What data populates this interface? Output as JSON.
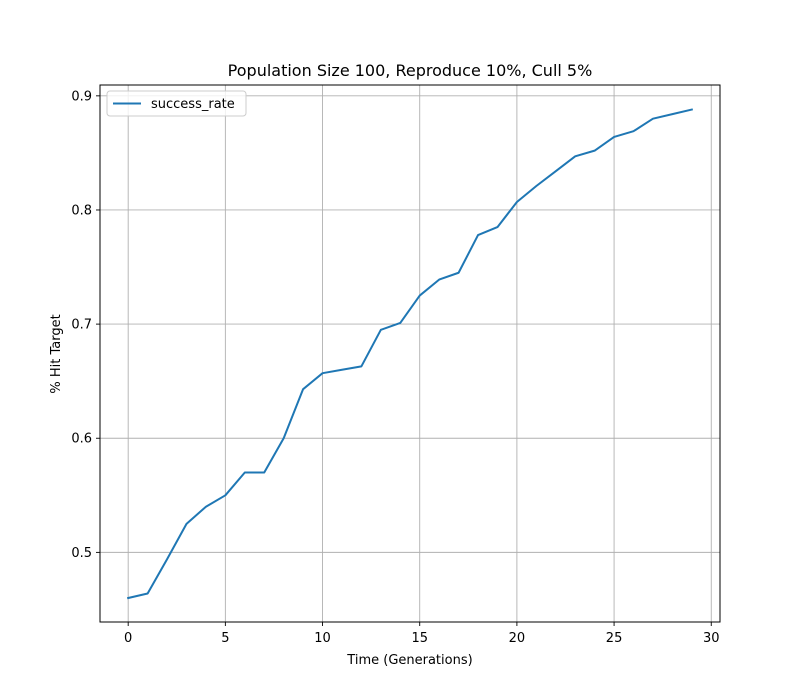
{
  "chart_data": {
    "type": "line",
    "title": "Population Size 100, Reproduce 10%, Cull 5%",
    "xlabel": "Time (Generations)",
    "ylabel": "% Hit Target",
    "xlim": [
      -1.45,
      30.45
    ],
    "ylim": [
      0.439,
      0.9095
    ],
    "xticks": [
      0,
      5,
      10,
      15,
      20,
      25,
      30
    ],
    "yticks": [
      0.5,
      0.6,
      0.7,
      0.8,
      0.9
    ],
    "xtick_labels": [
      "0",
      "5",
      "10",
      "15",
      "20",
      "25",
      "30"
    ],
    "ytick_labels": [
      "0.5",
      "0.6",
      "0.7",
      "0.8",
      "0.9"
    ],
    "grid": true,
    "legend": {
      "position": "top-left",
      "entries": [
        "success_rate"
      ]
    },
    "series": [
      {
        "name": "success_rate",
        "color": "#1f77b4",
        "x": [
          0,
          1,
          2,
          3,
          4,
          5,
          6,
          7,
          8,
          9,
          10,
          11,
          12,
          13,
          14,
          15,
          16,
          17,
          18,
          19,
          20,
          21,
          22,
          23,
          24,
          25,
          26,
          27,
          28,
          29
        ],
        "y": [
          0.46,
          0.464,
          0.494,
          0.525,
          0.54,
          0.55,
          0.57,
          0.57,
          0.6,
          0.643,
          0.657,
          0.66,
          0.663,
          0.695,
          0.701,
          0.725,
          0.739,
          0.745,
          0.778,
          0.785,
          0.807,
          0.821,
          0.834,
          0.847,
          0.852,
          0.864,
          0.869,
          0.88,
          0.884,
          0.888
        ]
      }
    ]
  }
}
